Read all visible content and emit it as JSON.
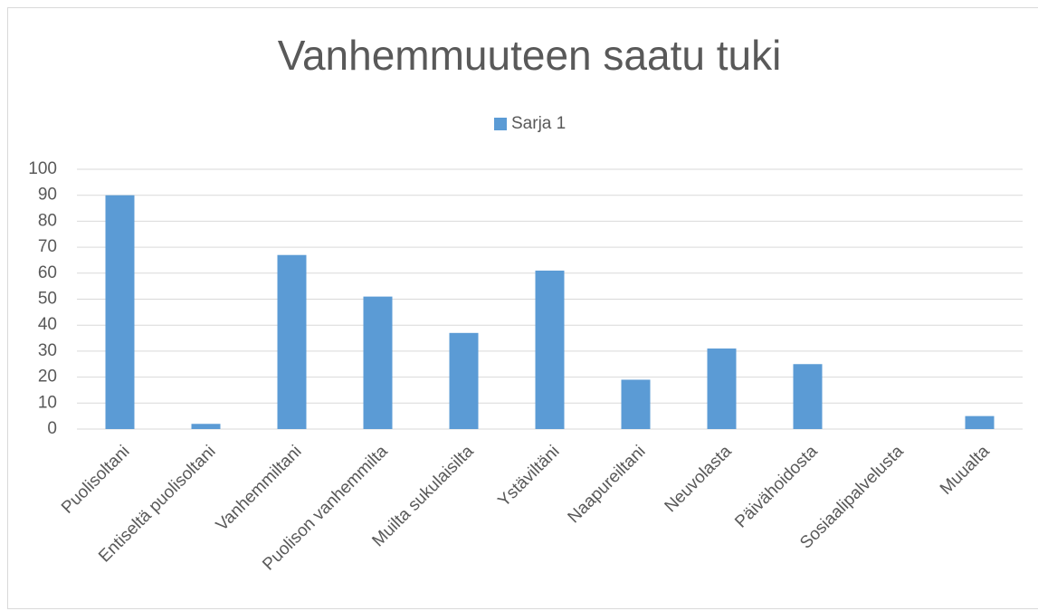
{
  "chart_data": {
    "type": "bar",
    "title": "Vanhemmuuteen saatu tuki",
    "categories": [
      "Puolisoltani",
      "Entiseltä puolisoltani",
      "Vanhemmiltani",
      "Puolison vanhemmilta",
      "Muilta sukulaisilta",
      "Ystäviltäni",
      "Naapureiltani",
      "Neuvolasta",
      "Päivähoidosta",
      "Sosiaalipalvelusta",
      "Muualta"
    ],
    "series": [
      {
        "name": "Sarja 1",
        "color": "#5b9bd5",
        "values": [
          90,
          2,
          67,
          51,
          37,
          61,
          19,
          31,
          25,
          0,
          5
        ]
      }
    ],
    "ylim": [
      0,
      100
    ],
    "yticks": [
      0,
      10,
      20,
      30,
      40,
      50,
      60,
      70,
      80,
      90,
      100
    ],
    "grid": true,
    "legend": "top"
  }
}
